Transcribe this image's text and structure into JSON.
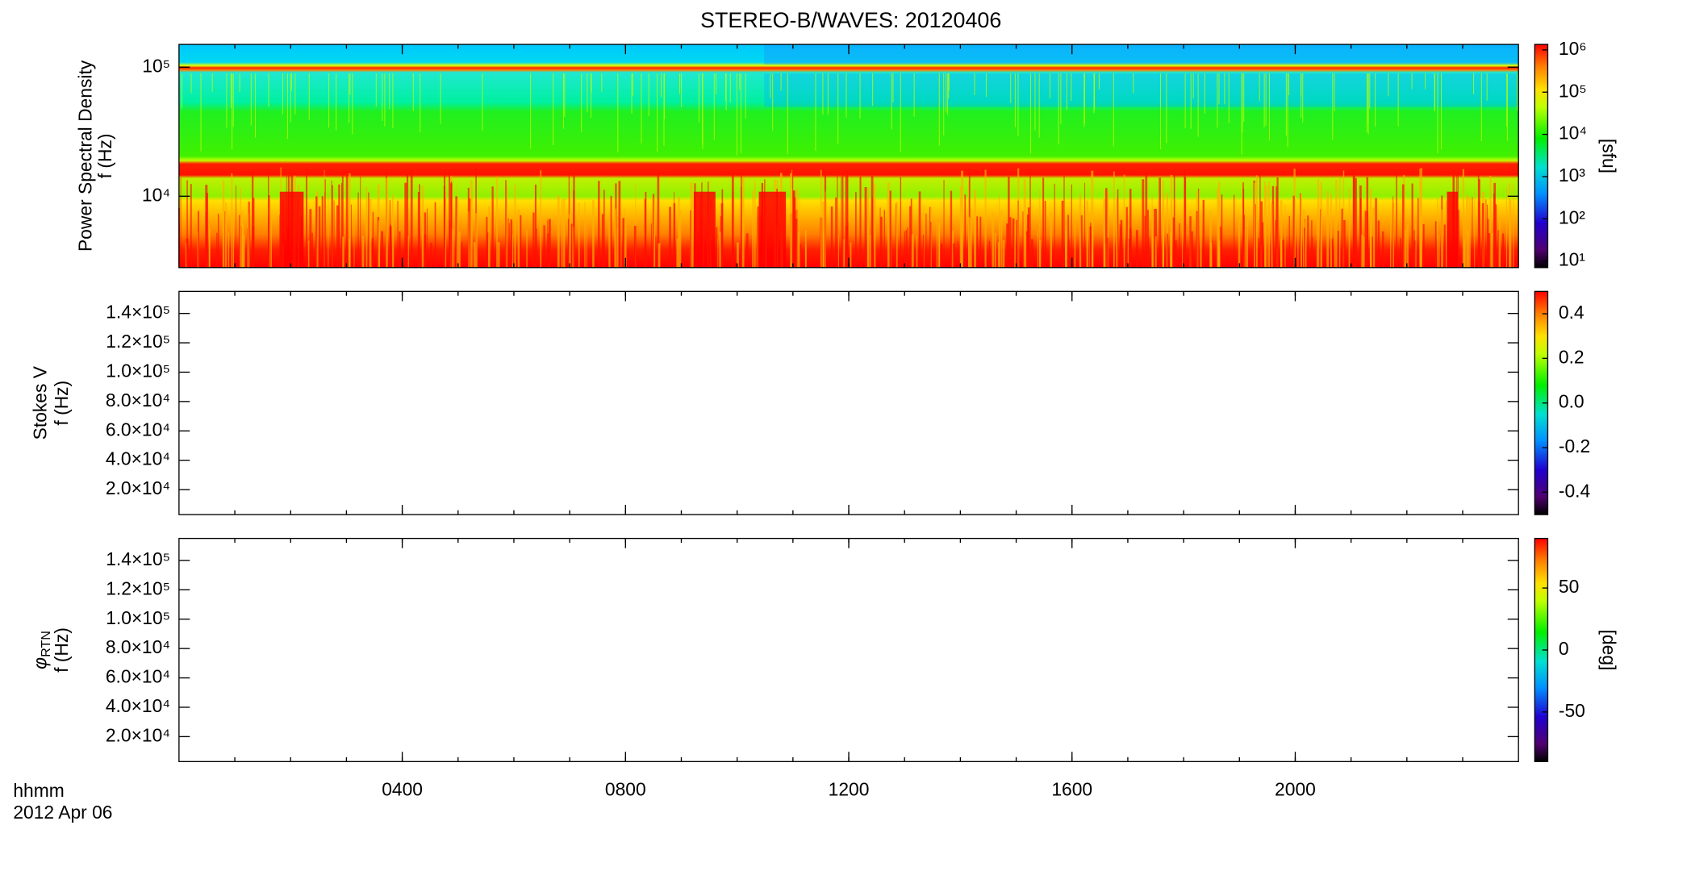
{
  "chart_data": [
    {
      "type": "spectrogram",
      "title": "STEREO-B/WAVES: 20120406",
      "ylabel": "Power Spectral Density",
      "ylabel2": "f (Hz)",
      "ylog": true,
      "ylim": [
        2800,
        150000
      ],
      "yticks": [
        {
          "value": 10000,
          "label": "10⁴"
        },
        {
          "value": 100000,
          "label": "10⁵"
        }
      ],
      "xlim": [
        0,
        24
      ],
      "clog": true,
      "clim": [
        7,
        1350000
      ],
      "cticks": [
        {
          "value": 10,
          "label": "10¹"
        },
        {
          "value": 100,
          "label": "10²"
        },
        {
          "value": 1000,
          "label": "10³"
        },
        {
          "value": 10000,
          "label": "10⁴"
        },
        {
          "value": 100000,
          "label": "10⁵"
        },
        {
          "value": 1000000,
          "label": "10⁶"
        }
      ],
      "clabel": "[sfu]"
    },
    {
      "type": "spectrogram",
      "ylabel": "Stokes V",
      "ylabel2": "f (Hz)",
      "ylog": false,
      "ylim": [
        3000,
        155000
      ],
      "yticks": [
        {
          "value": 20000,
          "label": "2.0×10⁴"
        },
        {
          "value": 40000,
          "label": "4.0×10⁴"
        },
        {
          "value": 60000,
          "label": "6.0×10⁴"
        },
        {
          "value": 80000,
          "label": "8.0×10⁴"
        },
        {
          "value": 100000,
          "label": "1.0×10⁵"
        },
        {
          "value": 120000,
          "label": "1.2×10⁵"
        },
        {
          "value": 140000,
          "label": "1.4×10⁵"
        }
      ],
      "xlim": [
        0,
        24
      ],
      "clog": false,
      "clim": [
        -0.5,
        0.5
      ],
      "cticks": [
        {
          "value": -0.4,
          "label": "-0.4"
        },
        {
          "value": -0.2,
          "label": "-0.2"
        },
        {
          "value": 0,
          "label": "0.0"
        },
        {
          "value": 0.2,
          "label": "0.2"
        },
        {
          "value": 0.4,
          "label": "0.4"
        }
      ]
    },
    {
      "type": "spectrogram",
      "ylabel": "φ",
      "ylabel_subscript": "RTN",
      "ylabel2": "f (Hz)",
      "ylog": false,
      "ylim": [
        3000,
        155000
      ],
      "yticks": [
        {
          "value": 20000,
          "label": "2.0×10⁴"
        },
        {
          "value": 40000,
          "label": "4.0×10⁴"
        },
        {
          "value": 60000,
          "label": "6.0×10⁴"
        },
        {
          "value": 80000,
          "label": "8.0×10⁴"
        },
        {
          "value": 100000,
          "label": "1.0×10⁵"
        },
        {
          "value": 120000,
          "label": "1.2×10⁵"
        },
        {
          "value": 140000,
          "label": "1.4×10⁵"
        }
      ],
      "xlim": [
        0,
        24
      ],
      "xticks": [
        {
          "value": 4,
          "label": "0400"
        },
        {
          "value": 8,
          "label": "0800"
        },
        {
          "value": 12,
          "label": "1200"
        },
        {
          "value": 16,
          "label": "1600"
        },
        {
          "value": 20,
          "label": "2000"
        }
      ],
      "xlabel": "hhmm",
      "xlabel2": "2012 Apr 06",
      "clog": false,
      "clim": [
        -90,
        90
      ],
      "cticks": [
        -50,
        0,
        50
      ],
      "clabel": "[deg]"
    }
  ]
}
